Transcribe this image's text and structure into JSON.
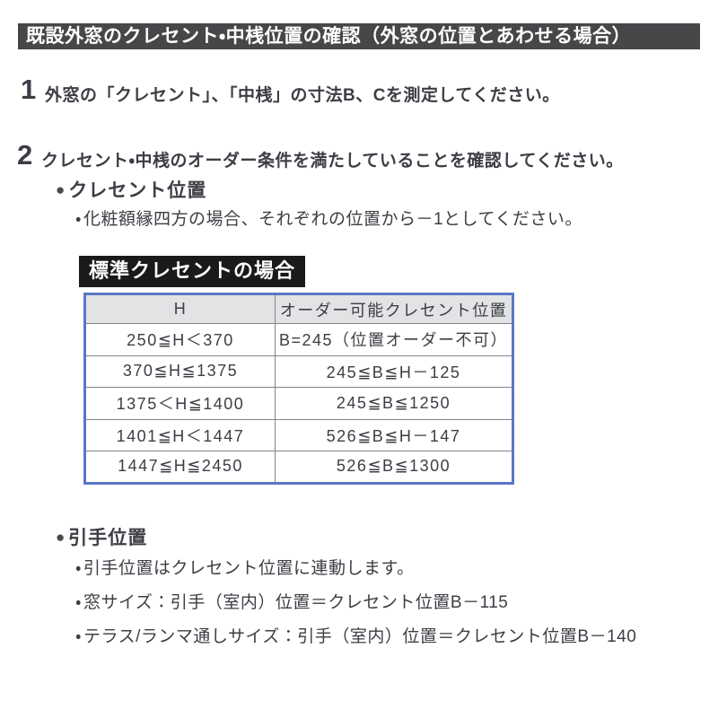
{
  "title": "既設外窓のクレセント・中桟位置の確認（外窓の位置とあわせる場合）",
  "icons": {
    "bullet": "●",
    "sub_bullet": "・"
  },
  "steps": [
    {
      "number": "1",
      "text": "外窓の「クレセント」、「中桟」の寸法B、Cを測定してください。"
    },
    {
      "number": "2",
      "text": "クレセント・中桟のオーダー条件を満たしていることを確認してください。"
    }
  ],
  "crescent_section": {
    "heading": "クレセント位置",
    "notes": [
      "化粧額縁四方の場合、それぞれの位置から－1としてください。"
    ]
  },
  "table_label": "標準クレセントの場合",
  "table": {
    "headers": [
      "H",
      "オーダー可能クレセント位置"
    ],
    "rows": [
      [
        "250≦H＜370",
        "B=245（位置オーダー不可）"
      ],
      [
        "370≦H≦1375",
        "245≦B≦H－125"
      ],
      [
        "1375＜H≦1400",
        "245≦B≦1250"
      ],
      [
        "1401≦H＜1447",
        "526≦B≦H－147"
      ],
      [
        "1447≦H≦2450",
        "526≦B≦1300"
      ]
    ]
  },
  "handle_section": {
    "heading": "引手位置",
    "notes": [
      "引手位置はクレセント位置に連動します。",
      "窓サイズ：引手（室内）位置＝クレセント位置B－115",
      "テラス/ランマ通しサイズ：引手（室内）位置＝クレセント位置B－140"
    ]
  },
  "colors": {
    "title_bar_bg": "#47474a",
    "label_bg": "#1a1a1a",
    "table_border": "#5b76c8",
    "table_header_bg": "#e2e3e5",
    "text": "#3d3d45"
  }
}
